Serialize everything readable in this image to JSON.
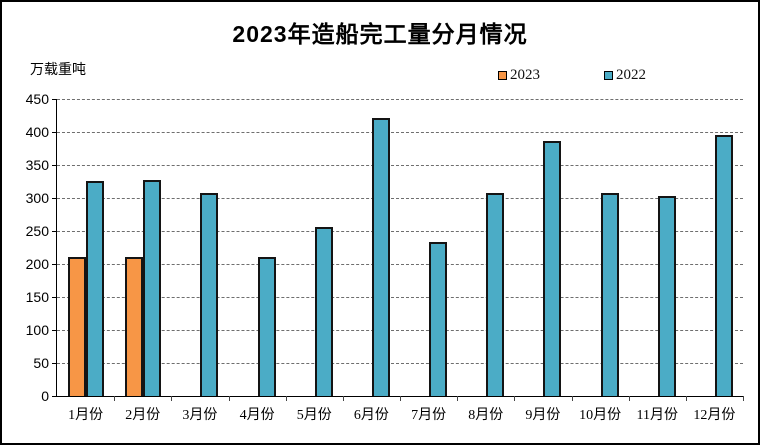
{
  "chart": {
    "title": "2023年造船完工量分月情况",
    "unit_label": "万载重吨"
  },
  "chart_data": {
    "type": "bar",
    "title": "2023年造船完工量分月情况",
    "xlabel": "",
    "ylabel": "万载重吨",
    "categories": [
      "1月份",
      "2月份",
      "3月份",
      "4月份",
      "5月份",
      "6月份",
      "7月份",
      "8月份",
      "9月份",
      "10月份",
      "11月份",
      "12月份"
    ],
    "series": [
      {
        "name": "2023",
        "color": "#F79646",
        "values": [
          211,
          211,
          null,
          null,
          null,
          null,
          null,
          null,
          null,
          null,
          null,
          null
        ]
      },
      {
        "name": "2022",
        "color": "#4BACC6",
        "values": [
          326,
          327,
          308,
          210,
          256,
          421,
          234,
          308,
          386,
          307,
          303,
          396
        ]
      }
    ],
    "ylim": [
      0,
      450
    ],
    "yticks": [
      0,
      50,
      100,
      150,
      200,
      250,
      300,
      350,
      400,
      450
    ],
    "grid": "horizontal-dashed",
    "legend_position": "top-right",
    "bar_border_color": "#141414"
  }
}
